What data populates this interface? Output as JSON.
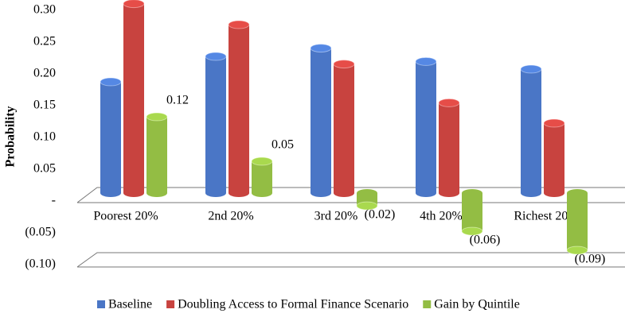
{
  "chart_data": {
    "type": "bar",
    "y_label": "Probability",
    "categories": [
      "Poorest 20%",
      "2nd 20%",
      "3rd 20%",
      "4th 20%",
      "Richest 20%"
    ],
    "series": [
      {
        "name": "Baseline",
        "color": "#4a76c6",
        "values": [
          0.175,
          0.215,
          0.228,
          0.207,
          0.195
        ]
      },
      {
        "name": "Doubling Access to Formal Finance Scenario",
        "color": "#c8433f",
        "values": [
          0.298,
          0.265,
          0.203,
          0.142,
          0.11
        ]
      },
      {
        "name": "Gain by Quintile",
        "color": "#93bd44",
        "values": [
          0.12,
          0.05,
          -0.02,
          -0.06,
          -0.09
        ],
        "value_labels": [
          "0.12",
          "0.05",
          "(0.02)",
          "(0.06)",
          "(0.09)"
        ]
      }
    ],
    "ylim": [
      -0.1,
      0.3
    ],
    "yticks": [
      {
        "value": 0.3,
        "label": "0.30"
      },
      0.25,
      {
        "value": 0.2,
        "label": "0.20"
      },
      0.15,
      {
        "value": 0.1,
        "label": "0.10"
      },
      0.05,
      {
        "value": 0,
        "label": "-"
      },
      {
        "value": -0.05,
        "label": "(0.05)"
      },
      {
        "value": -0.1,
        "label": "(0.10)"
      }
    ],
    "legend": "bottom"
  }
}
